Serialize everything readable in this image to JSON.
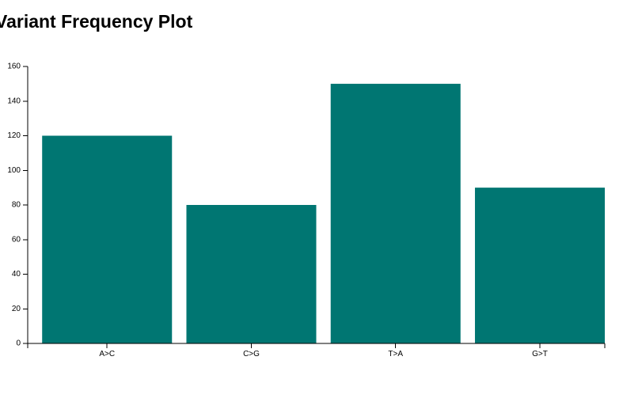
{
  "chart_data": {
    "type": "bar",
    "title": "Variant Frequency Plot",
    "categories": [
      "A>C",
      "C>G",
      "T>A",
      "G>T"
    ],
    "values": [
      120,
      80,
      150,
      90
    ],
    "xlabel": "",
    "ylabel": "",
    "ylim": [
      0,
      160
    ],
    "yticks": [
      0,
      20,
      40,
      60,
      80,
      100,
      120,
      140,
      160
    ],
    "grid": false,
    "legend": "none",
    "bar_color": "#007672"
  }
}
